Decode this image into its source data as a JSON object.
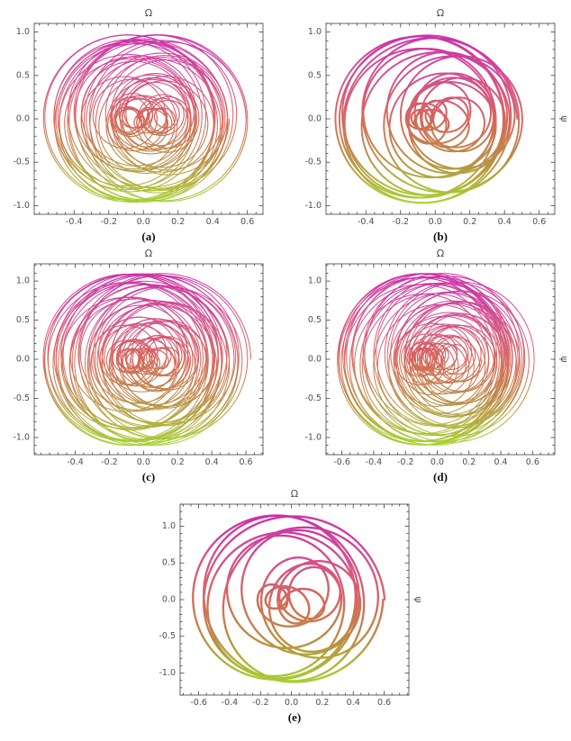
{
  "style": {
    "background": "#ffffff",
    "frame_color": "#3f3f3f",
    "tick_label_color": "#4f4f4f",
    "axis_title_color": "#4a4a4a",
    "caption_color": "#111111",
    "color_stops": [
      [
        0.0,
        "#a6d232"
      ],
      [
        0.25,
        "#b98f43"
      ],
      [
        0.5,
        "#d7675c"
      ],
      [
        0.75,
        "#d34e90"
      ],
      [
        1.0,
        "#cb2fa9"
      ]
    ]
  },
  "chart_data": [
    {
      "id": "a",
      "type": "line",
      "caption": "(a)",
      "title": "Ω",
      "right_label": "",
      "x_ticks": [
        -0.4,
        -0.2,
        0.0,
        0.2,
        0.4,
        0.6
      ],
      "x_tick_labels": [
        "-0.4",
        "-0.2",
        "0.0",
        "0.2",
        "0.4",
        "0.6"
      ],
      "y_ticks": [
        -1.0,
        -0.5,
        0.0,
        0.5,
        1.0
      ],
      "y_tick_labels": [
        "-1.0",
        "-0.5",
        "0.0",
        "0.5",
        "1.0"
      ],
      "xlim": [
        -0.63,
        0.69
      ],
      "ylim": [
        -1.1,
        1.1
      ],
      "x_minor_step": 0.05,
      "y_minor_step": 0.1,
      "grid": false,
      "frame": true,
      "curve": {
        "model": "x=ox+sx*R*cos(t)+cx*cos(wc*t+pc); y=sy*R*sin(t); R=r0+r1*cos(wm*t)",
        "r0": 0.52,
        "r1": 0.42,
        "wm": 0.0903,
        "wc": 0.2114,
        "pc": 0.7,
        "sx": 0.52,
        "sy": 1.03,
        "cx": 0.11,
        "ox": 0.02,
        "revs": 55,
        "steps": 210,
        "stroke": 1.05
      }
    },
    {
      "id": "b",
      "type": "line",
      "caption": "(b)",
      "title": "Ω",
      "right_label": "ψ",
      "x_ticks": [
        -0.4,
        -0.2,
        0.0,
        0.2,
        0.4,
        0.6
      ],
      "x_tick_labels": [
        "-0.4",
        "-0.2",
        "0.0",
        "0.2",
        "0.4",
        "0.6"
      ],
      "y_ticks": [
        -1.0,
        -0.5,
        0.0,
        0.5,
        1.0
      ],
      "y_tick_labels": [
        "-1.0",
        "-0.5",
        "0.0",
        "0.5",
        "1.0"
      ],
      "xlim": [
        -0.63,
        0.69
      ],
      "ylim": [
        -1.1,
        1.1
      ],
      "x_minor_step": 0.05,
      "y_minor_step": 0.1,
      "grid": false,
      "frame": true,
      "curve": {
        "model": "x=ox+sx*R*cos(t)+cx*cos(wc*t+pc); y=sy*R*sin(t); R=r0+r1*cos(wm*t)",
        "r0": 0.52,
        "r1": 0.42,
        "wm": 0.1132,
        "wc": 0.2414,
        "pc": 1.9,
        "sx": 0.52,
        "sy": 1.03,
        "cx": 0.11,
        "ox": 0.02,
        "revs": 26,
        "steps": 220,
        "stroke": 1.9
      }
    },
    {
      "id": "c",
      "type": "line",
      "caption": "(c)",
      "title": "Ω",
      "right_label": "",
      "x_ticks": [
        -0.4,
        -0.2,
        0.0,
        0.2,
        0.4,
        0.6
      ],
      "x_tick_labels": [
        "-0.4",
        "-0.2",
        "0.0",
        "0.2",
        "0.4",
        "0.6"
      ],
      "y_ticks": [
        -1.0,
        -0.5,
        0.0,
        0.5,
        1.0
      ],
      "y_tick_labels": [
        "-1.0",
        "-0.5",
        "0.0",
        "0.5",
        "1.0"
      ],
      "xlim": [
        -0.64,
        0.7
      ],
      "ylim": [
        -1.22,
        1.22
      ],
      "x_minor_step": 0.05,
      "y_minor_step": 0.1,
      "grid": false,
      "frame": true,
      "curve": {
        "model": "x=ox+sx*R*cos(t)+cx*cos(wc*t+pc); y=sy*R*sin(t); R=r0+r1*cos(wm*t)",
        "r0": 0.52,
        "r1": 0.42,
        "wm": 0.0839,
        "wc": 0.179,
        "pc": 0.4,
        "sx": 0.54,
        "sy": 1.17,
        "cx": 0.11,
        "ox": 0.02,
        "revs": 70,
        "steps": 200,
        "stroke": 1.0
      }
    },
    {
      "id": "d",
      "type": "line",
      "caption": "(d)",
      "title": "Ω",
      "right_label": "ψ",
      "x_ticks": [
        -0.6,
        -0.4,
        -0.2,
        0.0,
        0.2,
        0.4,
        0.6
      ],
      "x_tick_labels": [
        "-0.6",
        "-0.4",
        "-0.2",
        "0.0",
        "0.2",
        "0.4",
        "0.6"
      ],
      "y_ticks": [
        -1.0,
        -0.5,
        0.0,
        0.5,
        1.0
      ],
      "y_tick_labels": [
        "-1.0",
        "-0.5",
        "0.0",
        "0.5",
        "1.0"
      ],
      "xlim": [
        -0.7,
        0.74
      ],
      "ylim": [
        -1.22,
        1.22
      ],
      "x_minor_step": 0.05,
      "y_minor_step": 0.1,
      "grid": false,
      "frame": true,
      "curve": {
        "model": "x=ox+sx*R*cos(t)+cx*cos(wc*t+pc); y=sy*R*sin(t); R=r0+r1*cos(wm*t)",
        "r0": 0.52,
        "r1": 0.42,
        "wm": 0.0951,
        "wc": 0.1953,
        "pc": 2.6,
        "sx": 0.56,
        "sy": 1.17,
        "cx": 0.12,
        "ox": 0.015,
        "revs": 70,
        "steps": 200,
        "stroke": 1.0
      }
    },
    {
      "id": "e",
      "type": "line",
      "caption": "(e)",
      "title": "Ω",
      "right_label": "ψ",
      "x_ticks": [
        -0.6,
        -0.4,
        -0.2,
        0.0,
        0.2,
        0.4,
        0.6
      ],
      "x_tick_labels": [
        "-0.6",
        "-0.4",
        "-0.2",
        "0.0",
        "0.2",
        "0.4",
        "0.6"
      ],
      "y_ticks": [
        -1.0,
        -0.5,
        0.0,
        0.5,
        1.0
      ],
      "y_tick_labels": [
        "-1.0",
        "-0.5",
        "0.0",
        "0.5",
        "1.0"
      ],
      "xlim": [
        -0.72,
        0.76
      ],
      "ylim": [
        -1.3,
        1.3
      ],
      "x_minor_step": 0.05,
      "y_minor_step": 0.1,
      "grid": false,
      "frame": true,
      "curve": {
        "model": "x=ox+sx*R*cos(t)+cx*cos(wc*t+pc); y=sy*R*sin(t); R=r0+r1*cos(wm*t)",
        "r0": 0.52,
        "r1": 0.42,
        "wm": 0.139,
        "wc": 0.31,
        "pc": 1.2,
        "sx": 0.57,
        "sy": 1.22,
        "cx": 0.13,
        "ox": 0.02,
        "revs": 15,
        "steps": 260,
        "stroke": 2.3
      }
    }
  ]
}
